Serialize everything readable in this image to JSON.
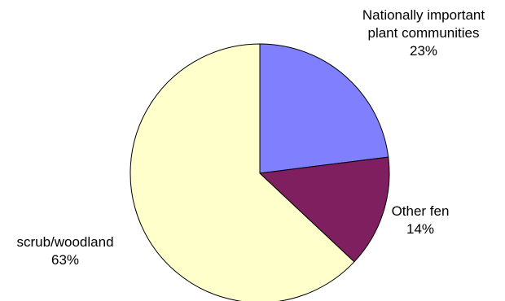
{
  "chart_data": {
    "type": "pie",
    "slices": [
      {
        "label_lines": [
          "Nationally important",
          "plant communities"
        ],
        "value": 23,
        "value_label": "23%",
        "color": "#8080ff"
      },
      {
        "label_lines": [
          "Other fen"
        ],
        "value": 14,
        "value_label": "14%",
        "color": "#7f1f5f"
      },
      {
        "label_lines": [
          "scrub/woodland"
        ],
        "value": 63,
        "value_label": "63%",
        "color": "#ffffcc"
      }
    ],
    "start": "12 o'clock",
    "direction": "clockwise",
    "legend": "none"
  }
}
